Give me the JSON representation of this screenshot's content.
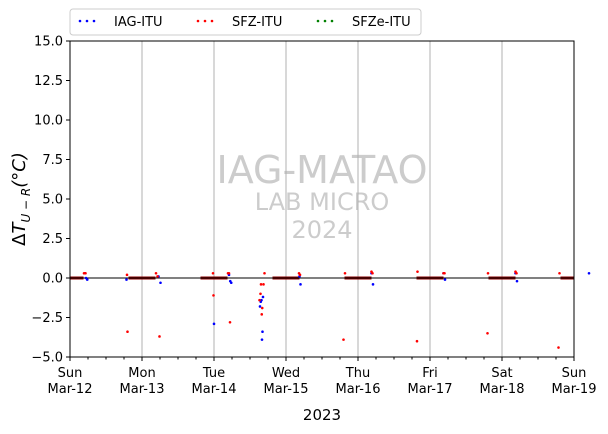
{
  "chart_data": {
    "type": "scatter",
    "title": "",
    "xlabel": "2023",
    "ylabel": "ΔT_{U-R}(°C)",
    "ylim": [
      -5.0,
      15.0
    ],
    "xlim": [
      "2023-03-12",
      "2023-03-19"
    ],
    "yticks": [
      "−5.0",
      "−2.5",
      "0.0",
      "2.5",
      "5.0",
      "7.5",
      "10.0",
      "12.5",
      "15.0"
    ],
    "xticks": [
      {
        "day": "Sun",
        "date": "Mar-12"
      },
      {
        "day": "Mon",
        "date": "Mar-13"
      },
      {
        "day": "Tue",
        "date": "Mar-14"
      },
      {
        "day": "Wed",
        "date": "Mar-15"
      },
      {
        "day": "Thu",
        "date": "Mar-16"
      },
      {
        "day": "Fri",
        "date": "Mar-17"
      },
      {
        "day": "Sat",
        "date": "Mar-18"
      },
      {
        "day": "Sun",
        "date": "Mar-19"
      }
    ],
    "grid": "vertical at day boundaries",
    "legend_position": "top, above plot",
    "watermark": [
      "IAG-MATAO",
      "LAB MICRO",
      "2024"
    ],
    "reference_line": 0,
    "series": [
      {
        "name": "IAG-ITU",
        "color": "#0000ff",
        "points": [
          [
            "2023-03-12 05:00",
            0.3
          ],
          [
            "2023-03-12 05:20",
            0.0
          ],
          [
            "2023-03-12 05:45",
            -0.1
          ],
          [
            "2023-03-12 18:50",
            -0.1
          ],
          [
            "2023-03-13 05:30",
            0.1
          ],
          [
            "2023-03-13 06:10",
            -0.3
          ],
          [
            "2023-03-14 00:00",
            -2.9
          ],
          [
            "2023-03-14 05:00",
            0.2
          ],
          [
            "2023-03-14 05:25",
            -0.2
          ],
          [
            "2023-03-14 05:45",
            -0.3
          ],
          [
            "2023-03-14 15:20",
            -1.8
          ],
          [
            "2023-03-14 15:35",
            -1.5
          ],
          [
            "2023-03-14 15:50",
            -1.4
          ],
          [
            "2023-03-14 16:00",
            -3.9
          ],
          [
            "2023-03-14 16:10",
            -3.4
          ],
          [
            "2023-03-14 16:20",
            -1.2
          ],
          [
            "2023-03-15 04:30",
            0.1
          ],
          [
            "2023-03-15 04:50",
            -0.4
          ],
          [
            "2023-03-16 04:30",
            0.3
          ],
          [
            "2023-03-16 05:00",
            -0.4
          ],
          [
            "2023-03-17 04:30",
            0.3
          ],
          [
            "2023-03-17 05:00",
            -0.1
          ],
          [
            "2023-03-18 04:30",
            0.3
          ],
          [
            "2023-03-18 05:00",
            -0.2
          ],
          [
            "2023-03-19 05:00",
            0.3
          ]
        ]
      },
      {
        "name": "SFZ-ITU",
        "color": "#ff0000",
        "points": [
          [
            "2023-03-12 04:40",
            0.3
          ],
          [
            "2023-03-12 05:10",
            0.3
          ],
          [
            "2023-03-12 19:00",
            0.2
          ],
          [
            "2023-03-12 19:10",
            -3.4
          ],
          [
            "2023-03-13 04:40",
            0.3
          ],
          [
            "2023-03-13 05:10",
            0.1
          ],
          [
            "2023-03-13 05:50",
            -3.7
          ],
          [
            "2023-03-13 23:40",
            0.3
          ],
          [
            "2023-03-13 23:50",
            -1.1
          ],
          [
            "2023-03-14 04:40",
            0.3
          ],
          [
            "2023-03-14 05:00",
            0.3
          ],
          [
            "2023-03-14 05:20",
            -2.8
          ],
          [
            "2023-03-14 15:10",
            -1.4
          ],
          [
            "2023-03-14 15:30",
            -1.0
          ],
          [
            "2023-03-14 15:40",
            -0.4
          ],
          [
            "2023-03-14 15:55",
            -2.3
          ],
          [
            "2023-03-14 16:05",
            -1.9
          ],
          [
            "2023-03-14 16:30",
            -0.4
          ],
          [
            "2023-03-14 16:50",
            0.3
          ],
          [
            "2023-03-15 04:20",
            0.3
          ],
          [
            "2023-03-15 04:40",
            0.2
          ],
          [
            "2023-03-15 19:10",
            -3.9
          ],
          [
            "2023-03-15 19:40",
            0.3
          ],
          [
            "2023-03-16 04:30",
            0.4
          ],
          [
            "2023-03-16 04:50",
            0.3
          ],
          [
            "2023-03-16 19:40",
            -4.0
          ],
          [
            "2023-03-16 19:50",
            0.4
          ],
          [
            "2023-03-17 04:30",
            0.3
          ],
          [
            "2023-03-17 04:50",
            0.3
          ],
          [
            "2023-03-17 19:10",
            -3.5
          ],
          [
            "2023-03-17 19:20",
            0.3
          ],
          [
            "2023-03-18 04:30",
            0.4
          ],
          [
            "2023-03-18 04:50",
            0.3
          ],
          [
            "2023-03-18 18:50",
            -4.4
          ],
          [
            "2023-03-18 19:10",
            0.3
          ]
        ]
      },
      {
        "name": "SFZe-ITU",
        "color": "#008000",
        "points": []
      }
    ],
    "daily_segments": {
      "color": "#8b0000",
      "value": 0.0,
      "ranges": [
        [
          "2023-03-12 00:00",
          "2023-03-12 04:30"
        ],
        [
          "2023-03-12 19:30",
          "2023-03-13 04:30"
        ],
        [
          "2023-03-13 19:30",
          "2023-03-14 04:30"
        ],
        [
          "2023-03-14 19:30",
          "2023-03-15 04:30"
        ],
        [
          "2023-03-15 19:30",
          "2023-03-16 04:30"
        ],
        [
          "2023-03-16 19:30",
          "2023-03-17 04:30"
        ],
        [
          "2023-03-17 19:30",
          "2023-03-18 04:30"
        ],
        [
          "2023-03-18 19:30",
          "2023-03-19 00:00"
        ]
      ]
    }
  }
}
